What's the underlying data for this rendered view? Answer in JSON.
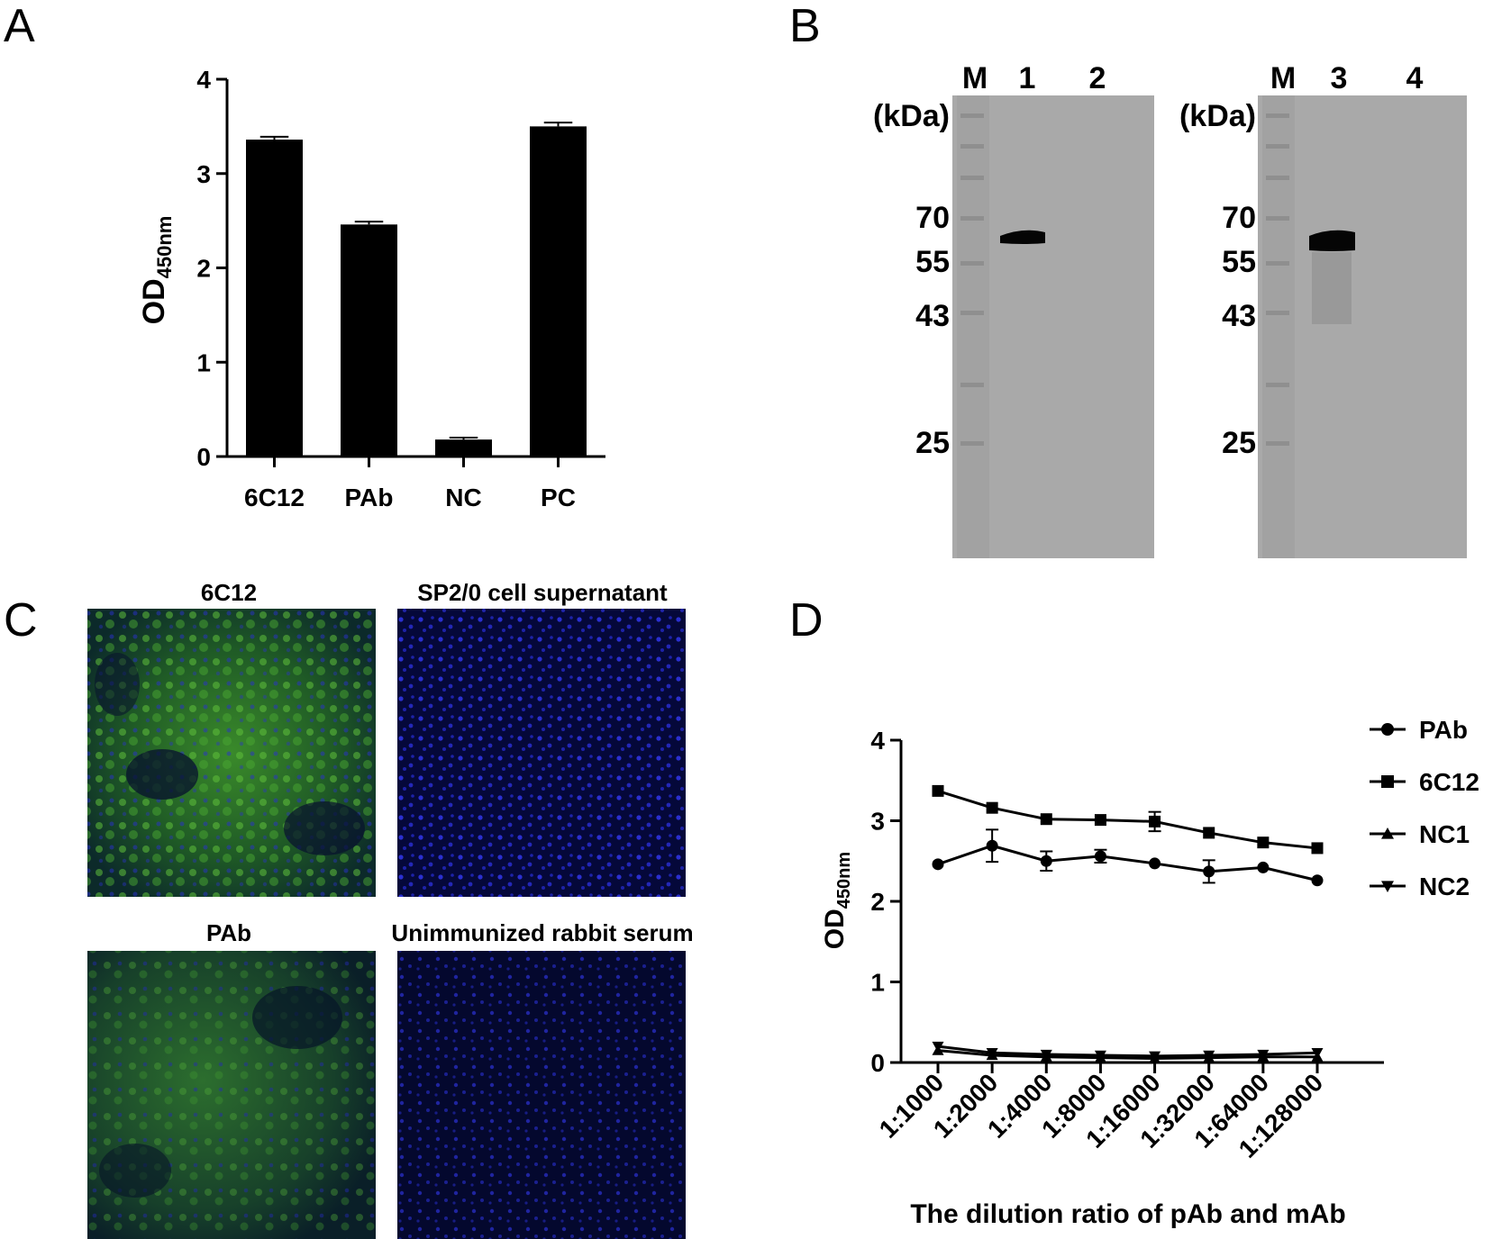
{
  "panels": {
    "a": "A",
    "b": "B",
    "c": "C",
    "d": "D"
  },
  "ylabel_main": "OD",
  "ylabel_sub": "450nm",
  "chart_data": [
    {
      "type": "bar",
      "panel": "A",
      "categories": [
        "6C12",
        "PAb",
        "NC",
        "PC"
      ],
      "values": [
        3.36,
        2.46,
        0.18,
        3.5
      ],
      "errors": [
        0.03,
        0.03,
        0.02,
        0.04
      ],
      "ylim": [
        0,
        4
      ],
      "yticks": [
        0,
        1,
        2,
        3,
        4
      ],
      "bar_color": "#000000"
    },
    {
      "type": "line",
      "panel": "D",
      "categories": [
        "1:1000",
        "1:2000",
        "1:4000",
        "1:8000",
        "1:16000",
        "1:32000",
        "1:64000",
        "1:128000"
      ],
      "series": [
        {
          "name": "PAb",
          "marker": "circle",
          "values": [
            2.46,
            2.69,
            2.5,
            2.56,
            2.47,
            2.37,
            2.42,
            2.26
          ],
          "errors": [
            0.02,
            0.2,
            0.12,
            0.08,
            0.02,
            0.14,
            0.02,
            0.02
          ]
        },
        {
          "name": "6C12",
          "marker": "square",
          "values": [
            3.37,
            3.16,
            3.02,
            3.01,
            2.99,
            2.85,
            2.73,
            2.66
          ],
          "errors": [
            0.02,
            0.02,
            0.02,
            0.02,
            0.12,
            0.02,
            0.02,
            0.02
          ]
        },
        {
          "name": "NC1",
          "marker": "triangle-up",
          "values": [
            0.15,
            0.09,
            0.07,
            0.06,
            0.05,
            0.06,
            0.07,
            0.07
          ],
          "errors": [
            0,
            0,
            0,
            0,
            0,
            0,
            0,
            0
          ]
        },
        {
          "name": "NC2",
          "marker": "triangle-down",
          "values": [
            0.2,
            0.12,
            0.1,
            0.09,
            0.08,
            0.09,
            0.1,
            0.12
          ],
          "errors": [
            0,
            0,
            0,
            0,
            0,
            0,
            0,
            0
          ]
        }
      ],
      "ylim": [
        0,
        4
      ],
      "yticks": [
        0,
        1,
        2,
        3,
        4
      ],
      "xlabel": "The dilution ratio of pAb and mAb",
      "legend_position": "top-right"
    }
  ],
  "western_blot": {
    "unit_label": "(kDa)",
    "markers": [
      "70",
      "55",
      "43",
      "25"
    ],
    "left": {
      "lanes": [
        "M",
        "1",
        "2"
      ]
    },
    "right": {
      "lanes": [
        "M",
        "3",
        "4"
      ]
    }
  },
  "ifa": {
    "captions": [
      "6C12",
      "SP2/0 cell supernatant",
      "PAb",
      "Unimmunized rabbit serum"
    ]
  }
}
